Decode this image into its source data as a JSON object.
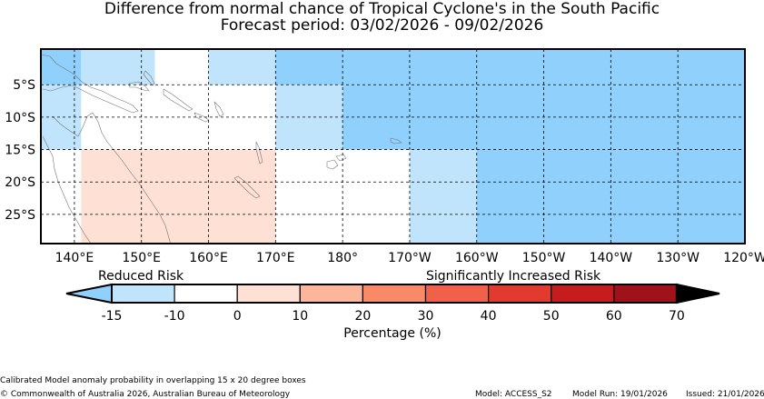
{
  "title": "Difference from normal chance of Tropical Cyclone's in the South Pacific",
  "subtitle": "Forecast period: 03/02/2026 - 09/02/2026",
  "map": {
    "lon_range": [
      135,
      240
    ],
    "lat_range": [
      -29.5,
      0.5
    ],
    "lat_ticks": [
      {
        "lat": -5,
        "label": "5°S"
      },
      {
        "lat": -10,
        "label": "10°S"
      },
      {
        "lat": -15,
        "label": "15°S"
      },
      {
        "lat": -20,
        "label": "20°S"
      },
      {
        "lat": -25,
        "label": "25°S"
      }
    ],
    "lon_ticks": [
      {
        "lon": 140,
        "label": "140°E"
      },
      {
        "lon": 150,
        "label": "150°E"
      },
      {
        "lon": 160,
        "label": "160°E"
      },
      {
        "lon": 170,
        "label": "170°E"
      },
      {
        "lon": 180,
        "label": "180°"
      },
      {
        "lon": 190,
        "label": "170°W"
      },
      {
        "lon": 200,
        "label": "160°W"
      },
      {
        "lon": 210,
        "label": "150°W"
      },
      {
        "lon": 220,
        "label": "140°W"
      },
      {
        "lon": 230,
        "label": "130°W"
      },
      {
        "lon": 240,
        "label": "120°W"
      }
    ],
    "cells": [
      {
        "lon": [
          135,
          141
        ],
        "lat": [
          -5,
          0.5
        ],
        "value": -15
      },
      {
        "lon": [
          141,
          152
        ],
        "lat": [
          -5,
          0.5
        ],
        "value": -10
      },
      {
        "lon": [
          160,
          170
        ],
        "lat": [
          -5,
          0.5
        ],
        "value": -10
      },
      {
        "lon": [
          170,
          240
        ],
        "lat": [
          -5,
          0.5
        ],
        "value": -15
      },
      {
        "lon": [
          135,
          141
        ],
        "lat": [
          -15,
          -5
        ],
        "value": -10
      },
      {
        "lon": [
          170,
          180
        ],
        "lat": [
          -15,
          -5
        ],
        "value": -10
      },
      {
        "lon": [
          180,
          240
        ],
        "lat": [
          -15,
          -5
        ],
        "value": -15
      },
      {
        "lon": [
          141,
          170
        ],
        "lat": [
          -29.5,
          -15
        ],
        "value": 0
      },
      {
        "lon": [
          190,
          200
        ],
        "lat": [
          -29.5,
          -15
        ],
        "value": -10
      },
      {
        "lon": [
          200,
          240
        ],
        "lat": [
          -29.5,
          -15
        ],
        "value": -15
      }
    ]
  },
  "colorbar": {
    "left_label": "Reduced Risk",
    "right_label": "Significantly Increased Risk",
    "label": "Percentage (%)",
    "ticks": [
      "-15",
      "-10",
      "0",
      "10",
      "20",
      "30",
      "40",
      "50",
      "60",
      "70"
    ],
    "under_color": "#8fd0fc",
    "over_color": "#000000",
    "colors": [
      "#bfe4fc",
      "#ffffff",
      "#fee0d4",
      "#fbb69b",
      "#f88a68",
      "#f0604a",
      "#e03b2e",
      "#c51c1e",
      "#a01219"
    ],
    "bin_values": [
      -15,
      -10,
      0,
      10,
      20,
      30,
      40,
      50,
      60,
      70
    ]
  },
  "footer": {
    "note": "Calibrated Model anomaly probability in overlapping 15 x 20 degree boxes",
    "copyright": "© Commonwealth of Australia 2026, Australian Bureau of Meteorology",
    "model": "Model: ACCESS_S2",
    "model_run": "Model Run: 19/01/2026",
    "issued": "Issued: 21/01/2026"
  }
}
